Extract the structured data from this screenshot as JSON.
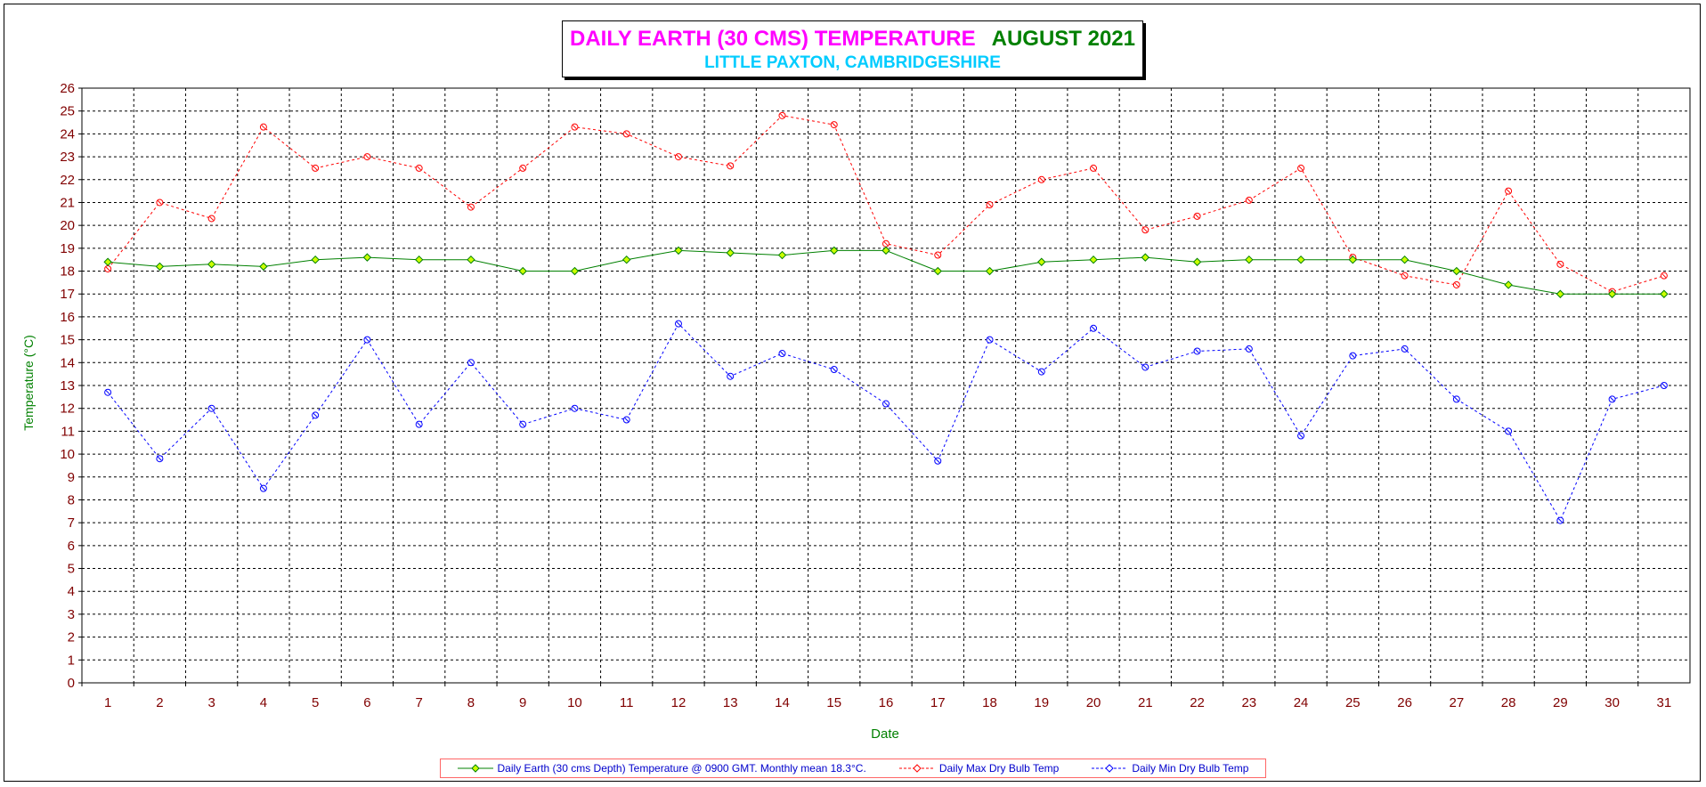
{
  "chart_data": {
    "type": "line",
    "title": "DAILY EARTH (30 CMS) TEMPERATURE",
    "title_month": "AUGUST 2021",
    "subtitle": "LITTLE PAXTON, CAMBRIDGESHIRE",
    "xlabel": "Date",
    "ylabel": "Temperature (°C)",
    "ylim": [
      0,
      26
    ],
    "grid": true,
    "legend_position": "bottom",
    "categories": [
      1,
      2,
      3,
      4,
      5,
      6,
      7,
      8,
      9,
      10,
      11,
      12,
      13,
      14,
      15,
      16,
      17,
      18,
      19,
      20,
      21,
      22,
      23,
      24,
      25,
      26,
      27,
      28,
      29,
      30,
      31
    ],
    "series": [
      {
        "name": "Daily Earth (30 cms Depth) Temperature @ 0900 GMT. Monthly mean 18.3°C.",
        "color": "#008000",
        "marker_fill": "#ccff00",
        "line_style": "solid",
        "values": [
          18.4,
          18.2,
          18.3,
          18.2,
          18.5,
          18.6,
          18.5,
          18.5,
          18.0,
          18.0,
          18.5,
          18.9,
          18.8,
          18.7,
          18.9,
          18.9,
          18.0,
          18.0,
          18.4,
          18.5,
          18.6,
          18.4,
          18.5,
          18.5,
          18.5,
          18.5,
          18.0,
          17.4,
          17.0,
          17.0,
          17.0
        ]
      },
      {
        "name": "Daily Max Dry Bulb Temp",
        "color": "#ff0000",
        "marker_fill": "#ffffff",
        "line_style": "dashed",
        "values": [
          18.1,
          21.0,
          20.3,
          24.3,
          22.5,
          23.0,
          22.5,
          20.8,
          22.5,
          24.3,
          24.0,
          23.0,
          22.6,
          24.8,
          24.4,
          19.2,
          18.7,
          20.9,
          22.0,
          22.5,
          19.8,
          20.4,
          21.1,
          22.5,
          18.6,
          17.8,
          17.4,
          21.5,
          18.3,
          17.1,
          17.8
        ]
      },
      {
        "name": "Daily Min Dry Bulb Temp",
        "color": "#0000ff",
        "marker_fill": "#ffffff",
        "line_style": "dashed",
        "values": [
          12.7,
          9.8,
          12.0,
          8.5,
          11.7,
          15.0,
          11.3,
          14.0,
          11.3,
          12.0,
          11.5,
          15.7,
          13.4,
          14.4,
          13.7,
          12.2,
          9.7,
          15.0,
          13.6,
          15.5,
          13.8,
          14.5,
          14.6,
          10.8,
          14.3,
          14.6,
          12.4,
          11.0,
          7.1,
          12.4,
          13.0
        ]
      }
    ],
    "axis_color": "#800000",
    "label_color": "#008000"
  }
}
